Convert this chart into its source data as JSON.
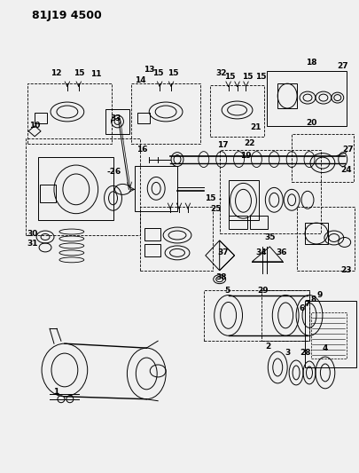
{
  "title": "81J19 4500",
  "bg": "#f5f5f5",
  "fig_width": 4.06,
  "fig_height": 5.33,
  "dpi": 100
}
